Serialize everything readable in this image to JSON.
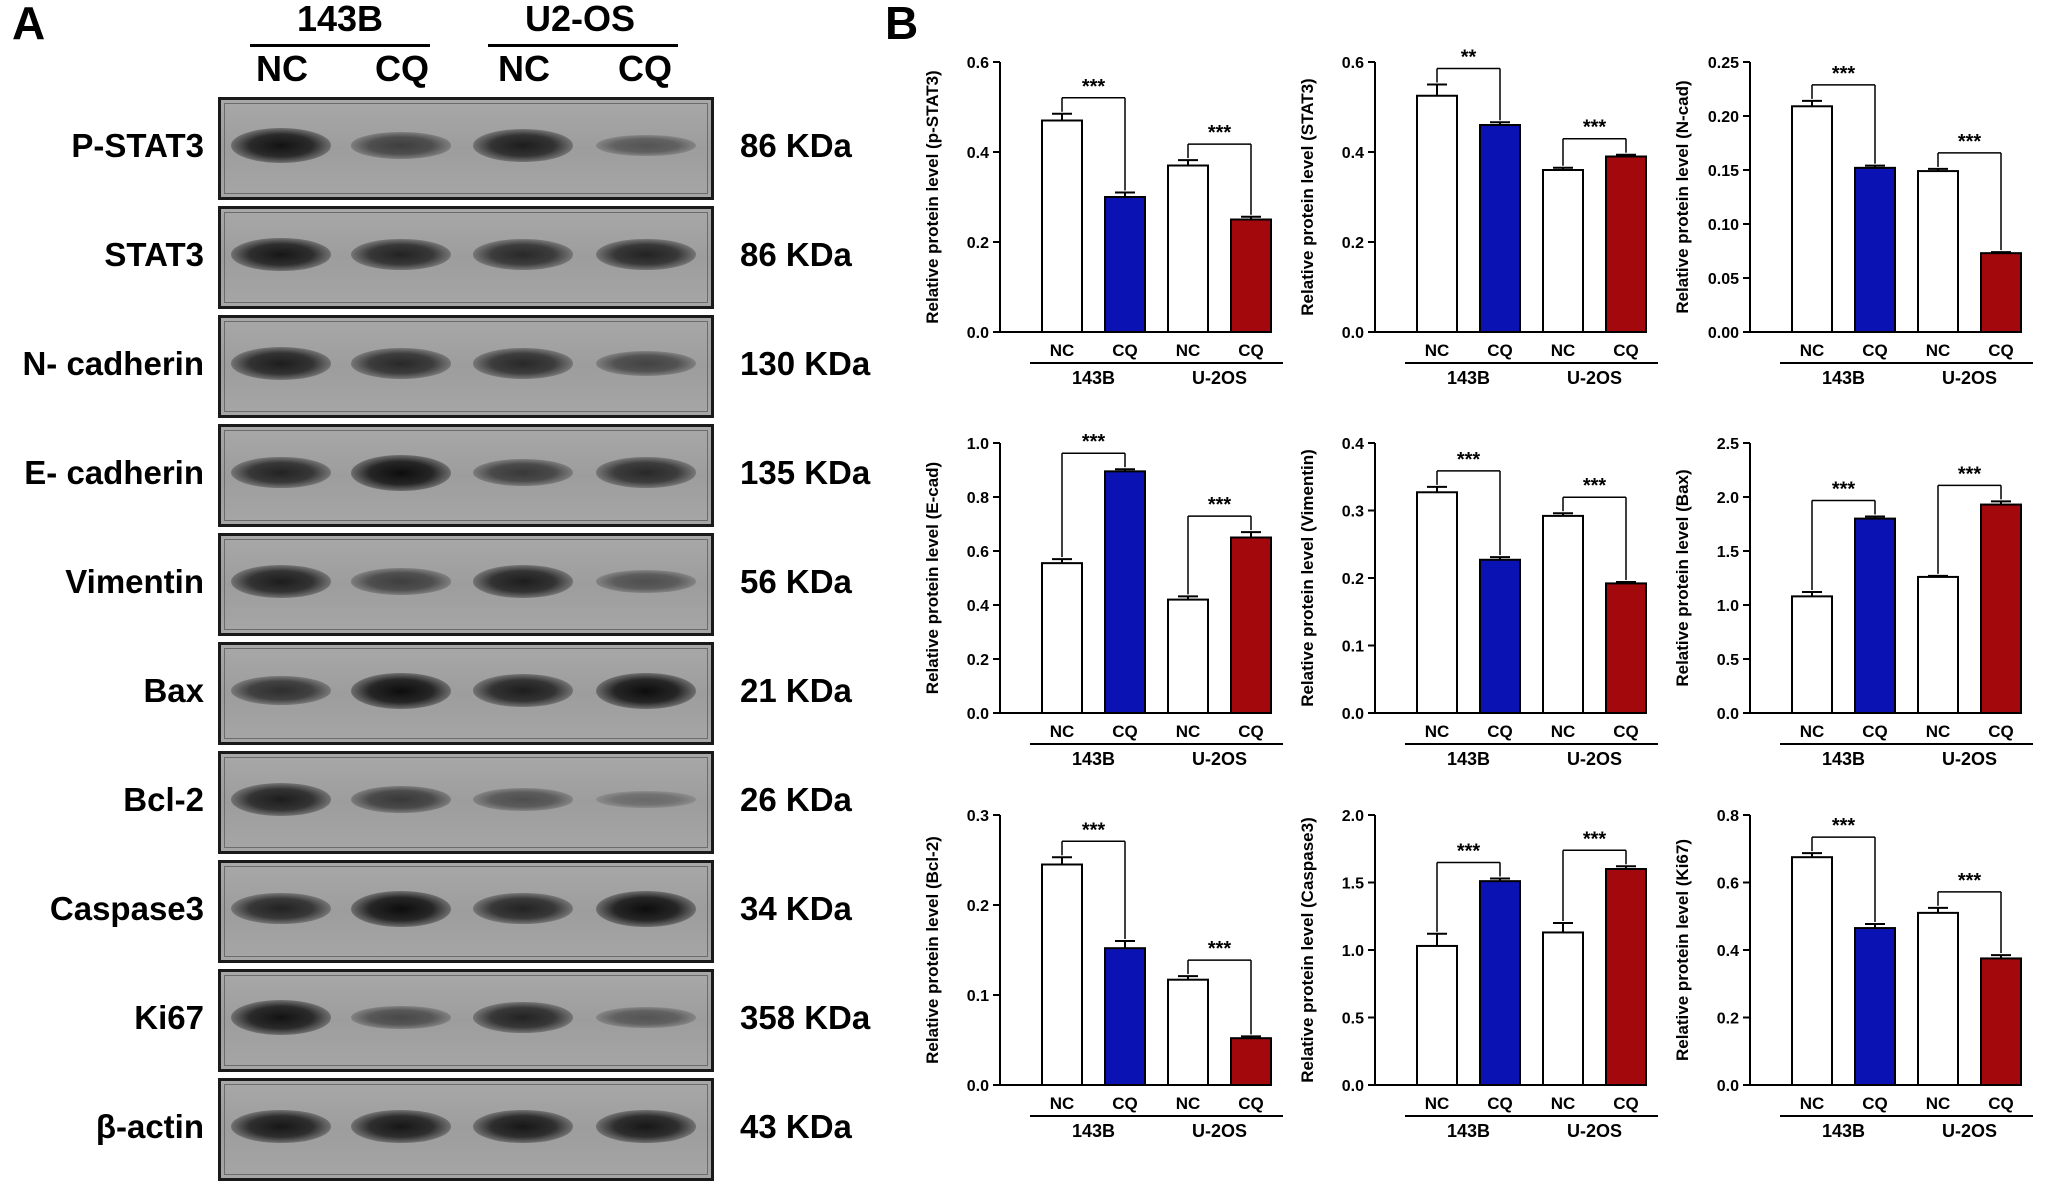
{
  "panelA": {
    "letter": "A",
    "cell_lines": [
      "143B",
      "U2-OS"
    ],
    "lanes": [
      "NC",
      "CQ",
      "NC",
      "CQ"
    ],
    "rows": [
      {
        "label": "P-STAT3",
        "kda": "86 KDa",
        "bands": [
          0.95,
          0.55,
          0.85,
          0.35
        ]
      },
      {
        "label": "STAT3",
        "kda": "86 KDa",
        "bands": [
          0.9,
          0.8,
          0.75,
          0.8
        ]
      },
      {
        "label": "N- cadherin",
        "kda": "130 KDa",
        "bands": [
          0.85,
          0.75,
          0.75,
          0.5
        ]
      },
      {
        "label": "E- cadherin",
        "kda": "135 KDa",
        "bands": [
          0.8,
          1.0,
          0.6,
          0.75
        ]
      },
      {
        "label": "Vimentin",
        "kda": "56 KDa",
        "bands": [
          0.85,
          0.55,
          0.85,
          0.4
        ]
      },
      {
        "label": "Bax",
        "kda": "21 KDa",
        "bands": [
          0.7,
          1.0,
          0.85,
          1.0
        ]
      },
      {
        "label": "Bcl-2",
        "kda": "26 KDa",
        "bands": [
          0.85,
          0.6,
          0.4,
          0.15
        ]
      },
      {
        "label": "Caspase3",
        "kda": "34 KDa",
        "bands": [
          0.8,
          1.0,
          0.8,
          1.0
        ]
      },
      {
        "label": "Ki67",
        "kda": "358 KDa",
        "bands": [
          0.95,
          0.45,
          0.8,
          0.35
        ]
      },
      {
        "label": "β-actin",
        "kda": "43 KDa",
        "bands": [
          0.9,
          0.9,
          0.9,
          0.9
        ]
      }
    ]
  },
  "panelB": {
    "letter": "B",
    "colors": {
      "nc": "#ffffff",
      "cq_143b": "#0b12b4",
      "cq_u2os": "#a3090c"
    },
    "chart_data": [
      {
        "type": "bar",
        "ylabel": "Relative protein level (p-STAT3)",
        "ylim": [
          0,
          0.6
        ],
        "yticks": [
          "0.0",
          "0.2",
          "0.4",
          "0.6"
        ],
        "categories": [
          "NC",
          "CQ",
          "NC",
          "CQ"
        ],
        "groups": [
          "143B",
          "U-2OS"
        ],
        "values": [
          0.47,
          0.3,
          0.37,
          0.25
        ],
        "errors": [
          0.015,
          0.01,
          0.012,
          0.006
        ],
        "significance": [
          "***",
          "***"
        ]
      },
      {
        "type": "bar",
        "ylabel": "Relative protein level (STAT3)",
        "ylim": [
          0,
          0.6
        ],
        "yticks": [
          "0.0",
          "0.2",
          "0.4",
          "0.6"
        ],
        "categories": [
          "NC",
          "CQ",
          "NC",
          "CQ"
        ],
        "groups": [
          "143B",
          "U-2OS"
        ],
        "values": [
          0.525,
          0.46,
          0.36,
          0.39
        ],
        "errors": [
          0.025,
          0.006,
          0.005,
          0.004
        ],
        "significance": [
          "**",
          "***"
        ]
      },
      {
        "type": "bar",
        "ylabel": "Relative protein level (N-cad)",
        "ylim": [
          0,
          0.25
        ],
        "yticks": [
          "0.00",
          "0.05",
          "0.10",
          "0.15",
          "0.20",
          "0.25"
        ],
        "categories": [
          "NC",
          "CQ",
          "NC",
          "CQ"
        ],
        "groups": [
          "143B",
          "U-2OS"
        ],
        "values": [
          0.209,
          0.152,
          0.149,
          0.073
        ],
        "errors": [
          0.005,
          0.002,
          0.002,
          0.001
        ],
        "significance": [
          "***",
          "***"
        ]
      },
      {
        "type": "bar",
        "ylabel": "Relative protein level (E-cad)",
        "ylim": [
          0,
          1.0
        ],
        "yticks": [
          "0.0",
          "0.2",
          "0.4",
          "0.6",
          "0.8",
          "1.0"
        ],
        "categories": [
          "NC",
          "CQ",
          "NC",
          "CQ"
        ],
        "groups": [
          "143B",
          "U-2OS"
        ],
        "values": [
          0.555,
          0.895,
          0.42,
          0.65
        ],
        "errors": [
          0.015,
          0.008,
          0.012,
          0.02
        ],
        "significance": [
          "***",
          "***"
        ]
      },
      {
        "type": "bar",
        "ylabel": "Relative protein level (Vimentin)",
        "ylim": [
          0,
          0.4
        ],
        "yticks": [
          "0.0",
          "0.1",
          "0.2",
          "0.3",
          "0.4"
        ],
        "categories": [
          "NC",
          "CQ",
          "NC",
          "CQ"
        ],
        "groups": [
          "143B",
          "U-2OS"
        ],
        "values": [
          0.327,
          0.227,
          0.292,
          0.192
        ],
        "errors": [
          0.008,
          0.004,
          0.004,
          0.002
        ],
        "significance": [
          "***",
          "***"
        ]
      },
      {
        "type": "bar",
        "ylabel": "Relative protein level (Bax)",
        "ylim": [
          0,
          2.5
        ],
        "yticks": [
          "0.0",
          "0.5",
          "1.0",
          "1.5",
          "2.0",
          "2.5"
        ],
        "categories": [
          "NC",
          "CQ",
          "NC",
          "CQ"
        ],
        "groups": [
          "143B",
          "U-2OS"
        ],
        "values": [
          1.08,
          1.8,
          1.26,
          1.93
        ],
        "errors": [
          0.04,
          0.02,
          0.01,
          0.03
        ],
        "significance": [
          "***",
          "***"
        ]
      },
      {
        "type": "bar",
        "ylabel": "Relative protein level (Bcl-2)",
        "ylim": [
          0,
          0.3
        ],
        "yticks": [
          "0.0",
          "0.1",
          "0.2",
          "0.3"
        ],
        "categories": [
          "NC",
          "CQ",
          "NC",
          "CQ"
        ],
        "groups": [
          "143B",
          "U-2OS"
        ],
        "values": [
          0.245,
          0.152,
          0.117,
          0.052
        ],
        "errors": [
          0.008,
          0.008,
          0.004,
          0.002
        ],
        "significance": [
          "***",
          "***"
        ]
      },
      {
        "type": "bar",
        "ylabel": "Relative protein level (Caspase3)",
        "ylim": [
          0,
          2.0
        ],
        "yticks": [
          "0.0",
          "0.5",
          "1.0",
          "1.5",
          "2.0"
        ],
        "categories": [
          "NC",
          "CQ",
          "NC",
          "CQ"
        ],
        "groups": [
          "143B",
          "U-2OS"
        ],
        "values": [
          1.03,
          1.51,
          1.13,
          1.6
        ],
        "errors": [
          0.09,
          0.02,
          0.07,
          0.02
        ],
        "significance": [
          "***",
          "***"
        ]
      },
      {
        "type": "bar",
        "ylabel": "Relative protein level (Ki67)",
        "ylim": [
          0,
          0.8
        ],
        "yticks": [
          "0.0",
          "0.2",
          "0.4",
          "0.6",
          "0.8"
        ],
        "categories": [
          "NC",
          "CQ",
          "NC",
          "CQ"
        ],
        "groups": [
          "143B",
          "U-2OS"
        ],
        "values": [
          0.675,
          0.465,
          0.51,
          0.375
        ],
        "errors": [
          0.012,
          0.012,
          0.015,
          0.01
        ],
        "significance": [
          "***",
          "***"
        ]
      }
    ]
  }
}
